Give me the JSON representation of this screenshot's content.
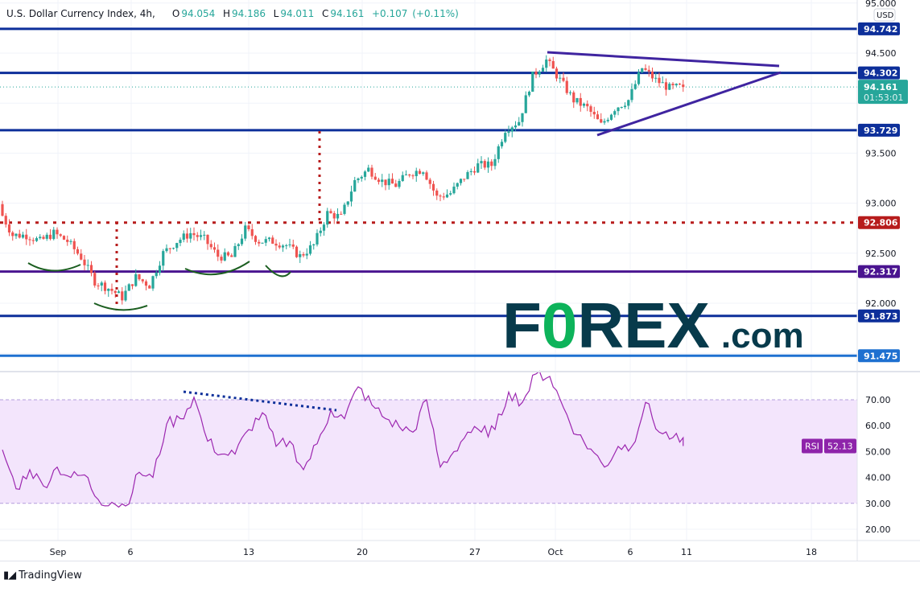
{
  "header": {
    "symbol": "U.S. Dollar Currency Index, 4h,",
    "open_label": "O",
    "open": "94.054",
    "high_label": "H",
    "high": "94.186",
    "low_label": "L",
    "low": "94.011",
    "close_label": "C",
    "close": "94.161",
    "change": "+0.107",
    "change_pct": "(+0.11%)"
  },
  "price_axis": {
    "currency": "USD",
    "ticks": [
      "95.000",
      "94.500",
      "93.500",
      "93.000",
      "92.500",
      "92.000"
    ],
    "current_price": "94.161",
    "countdown": "01:53:01"
  },
  "levels": [
    {
      "value": "94.742",
      "color": "#0d2f9a",
      "style": "solid"
    },
    {
      "value": "94.302",
      "color": "#0d2f9a",
      "style": "solid"
    },
    {
      "value": "93.729",
      "color": "#0d2f9a",
      "style": "solid"
    },
    {
      "value": "92.806",
      "color": "#b71c1c",
      "style": "dotted"
    },
    {
      "value": "92.317",
      "color": "#4a1490",
      "style": "solid"
    },
    {
      "value": "91.873",
      "color": "#0d2f9a",
      "style": "solid"
    },
    {
      "value": "91.475",
      "color": "#1e70d0",
      "style": "solid"
    }
  ],
  "time_axis": {
    "ticks": [
      "Sep",
      "6",
      "13",
      "20",
      "27",
      "Oct",
      "6",
      "11",
      "18"
    ]
  },
  "rsi": {
    "label": "RSI",
    "value": "52.13",
    "ticks": [
      "70.00",
      "60.00",
      "50.00",
      "40.00",
      "30.00",
      "20.00"
    ],
    "band": [
      30,
      70
    ],
    "color": "#9c27b0"
  },
  "watermark": {
    "text": "FOREX.com",
    "brand_color": "#073a4b",
    "accent_color": "#0db35a"
  },
  "footer": {
    "brand": "TradingView"
  },
  "colors": {
    "up": "#26a69a",
    "down": "#ef5350"
  },
  "chart_data": {
    "type": "candlestick",
    "timeframe": "4h",
    "price_range": [
      91.3,
      95.0
    ],
    "close_path": [
      92.94,
      92.68,
      92.68,
      92.62,
      92.7,
      92.62,
      92.46,
      92.22,
      92.15,
      92.06,
      92.26,
      92.18,
      92.5,
      92.62,
      92.7,
      92.64,
      92.47,
      92.46,
      92.74,
      92.62,
      92.62,
      92.58,
      92.47,
      92.58,
      92.9,
      92.86,
      93.22,
      93.34,
      93.22,
      93.18,
      93.3,
      93.34,
      93.06,
      93.1,
      93.26,
      93.38,
      93.38,
      93.74,
      93.82,
      94.27,
      94.43,
      94.23,
      94.03,
      93.95,
      93.78,
      93.95,
      94.03,
      94.35,
      94.23,
      94.15,
      94.161
    ],
    "rsi_path": [
      50.7,
      35.6,
      43,
      36.7,
      44,
      40,
      41,
      31.5,
      30.4,
      29,
      42,
      40,
      60.6,
      62.7,
      71,
      54,
      49,
      49,
      58.5,
      65,
      52,
      54,
      43,
      53,
      66,
      62.7,
      75,
      68,
      62.7,
      59.6,
      57.5,
      70,
      44,
      50,
      57.5,
      57.5,
      58.5,
      73,
      69,
      80,
      79,
      67,
      56.5,
      51,
      44,
      52,
      52,
      69,
      57.5,
      55.4,
      52.13
    ],
    "rsi_range": [
      15,
      85
    ]
  }
}
